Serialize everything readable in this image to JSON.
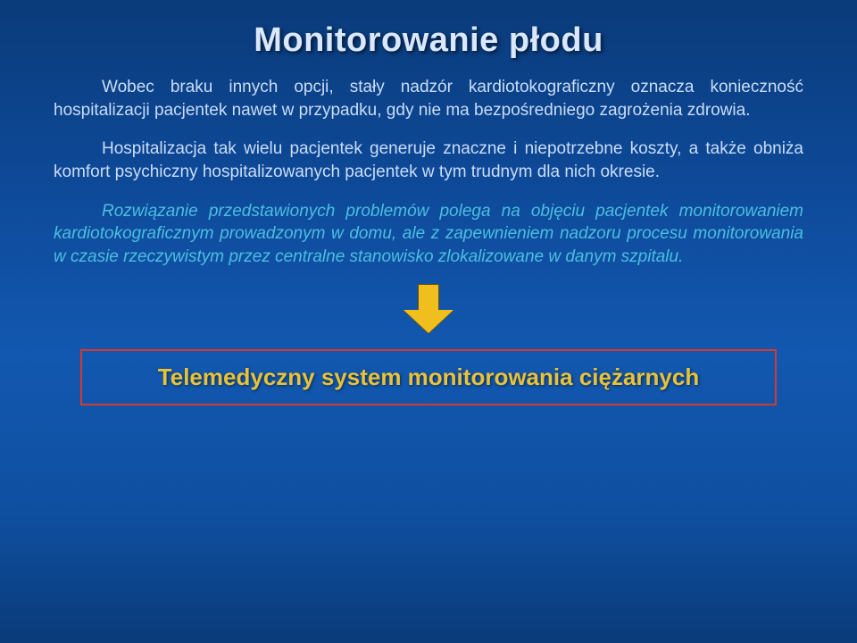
{
  "colors": {
    "background_gradient": [
      "#0a3b7a",
      "#0e4a9a",
      "#1258b0",
      "#0f4fa0",
      "#0a3b7a"
    ],
    "title_color": "#d9e8ff",
    "body_text_color": "#c9ddf7",
    "italic_text_color": "#4bbfe0",
    "callout_border": "#d33b2f",
    "callout_text": "#e8c23a",
    "arrow_fill": "#f0bf1e",
    "arrow_border": "#6b5200"
  },
  "typography": {
    "title_fontsize_pt": 29,
    "body_fontsize_pt": 14,
    "callout_fontsize_pt": 20,
    "font_family": "Arial"
  },
  "title": "Monitorowanie płodu",
  "paragraphs": {
    "p1": "Wobec braku innych opcji, stały nadzór kardiotokograficzny oznacza konieczność hospitalizacji pacjentek nawet w przypadku, gdy nie ma bezpośredniego zagrożenia zdrowia.",
    "p2": "Hospitalizacja tak wielu pacjentek generuje znaczne i niepotrzebne koszty, a także obniża komfort psychiczny hospitalizowanych pacjentek w tym trudnym dla nich okresie.",
    "p3": "Rozwiązanie przedstawionych problemów polega na objęciu pacjentek monitorowaniem kardiotokograficznym prowadzonym w domu, ale z zapewnieniem nadzoru procesu monitorowania w czasie rzeczywistym przez centralne stanowisko zlokalizowane w danym szpitalu."
  },
  "callout": "Telemedyczny system monitorowania ciężarnych"
}
